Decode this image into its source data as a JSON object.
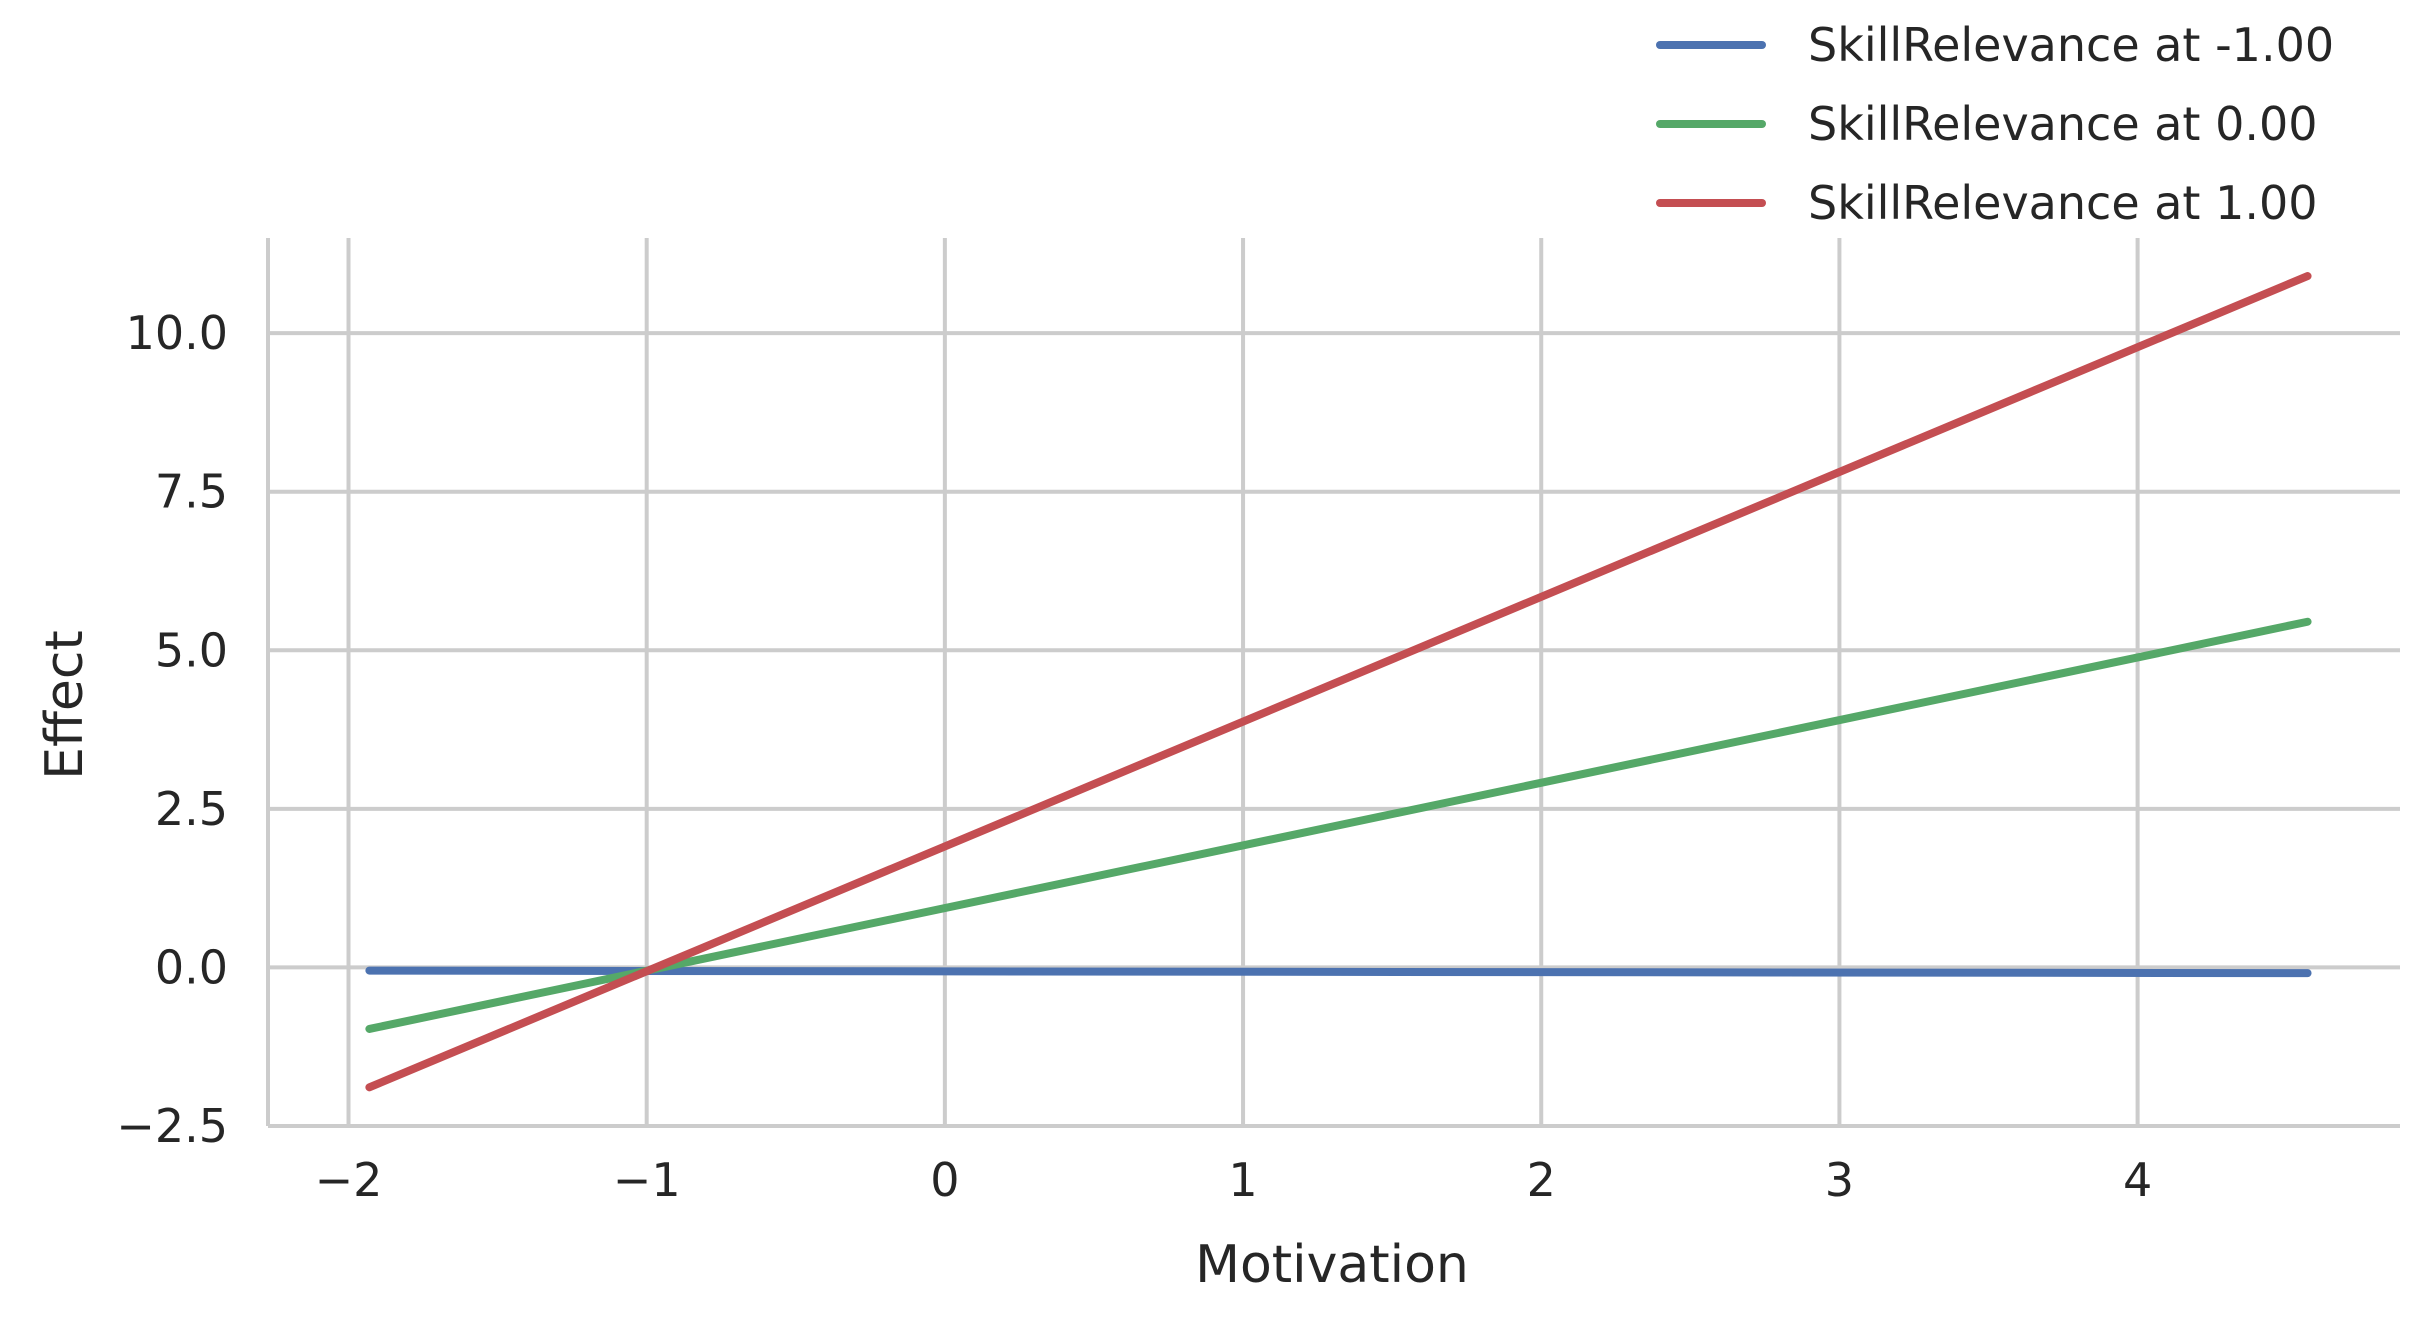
{
  "chart_data": {
    "type": "line",
    "title": "",
    "xlabel": "Motivation",
    "ylabel": "Effect",
    "xlim": [
      -2.27,
      4.88
    ],
    "ylim": [
      -2.5,
      11.5
    ],
    "xticks": [
      -2,
      -1,
      0,
      1,
      2,
      3,
      4
    ],
    "xtick_labels": [
      "−2",
      "−1",
      "0",
      "1",
      "2",
      "3",
      "4"
    ],
    "yticks": [
      -2.5,
      0.0,
      2.5,
      5.0,
      7.5,
      10.0
    ],
    "ytick_labels": [
      "−2.5",
      "0.0",
      "2.5",
      "5.0",
      "7.5",
      "10.0"
    ],
    "grid": true,
    "legend_position": "top-right, above plot",
    "series": [
      {
        "name": "SkillRelevance at -1.00",
        "color": "#4c72b0",
        "x": [
          -1.93,
          4.57
        ],
        "y": [
          -0.05,
          -0.09
        ]
      },
      {
        "name": "SkillRelevance at 0.00",
        "color": "#55a868",
        "x": [
          -1.93,
          4.57
        ],
        "y": [
          -0.97,
          5.45
        ]
      },
      {
        "name": "SkillRelevance at 1.00",
        "color": "#c44e52",
        "x": [
          -1.93,
          4.57
        ],
        "y": [
          -1.89,
          10.9
        ]
      }
    ]
  }
}
